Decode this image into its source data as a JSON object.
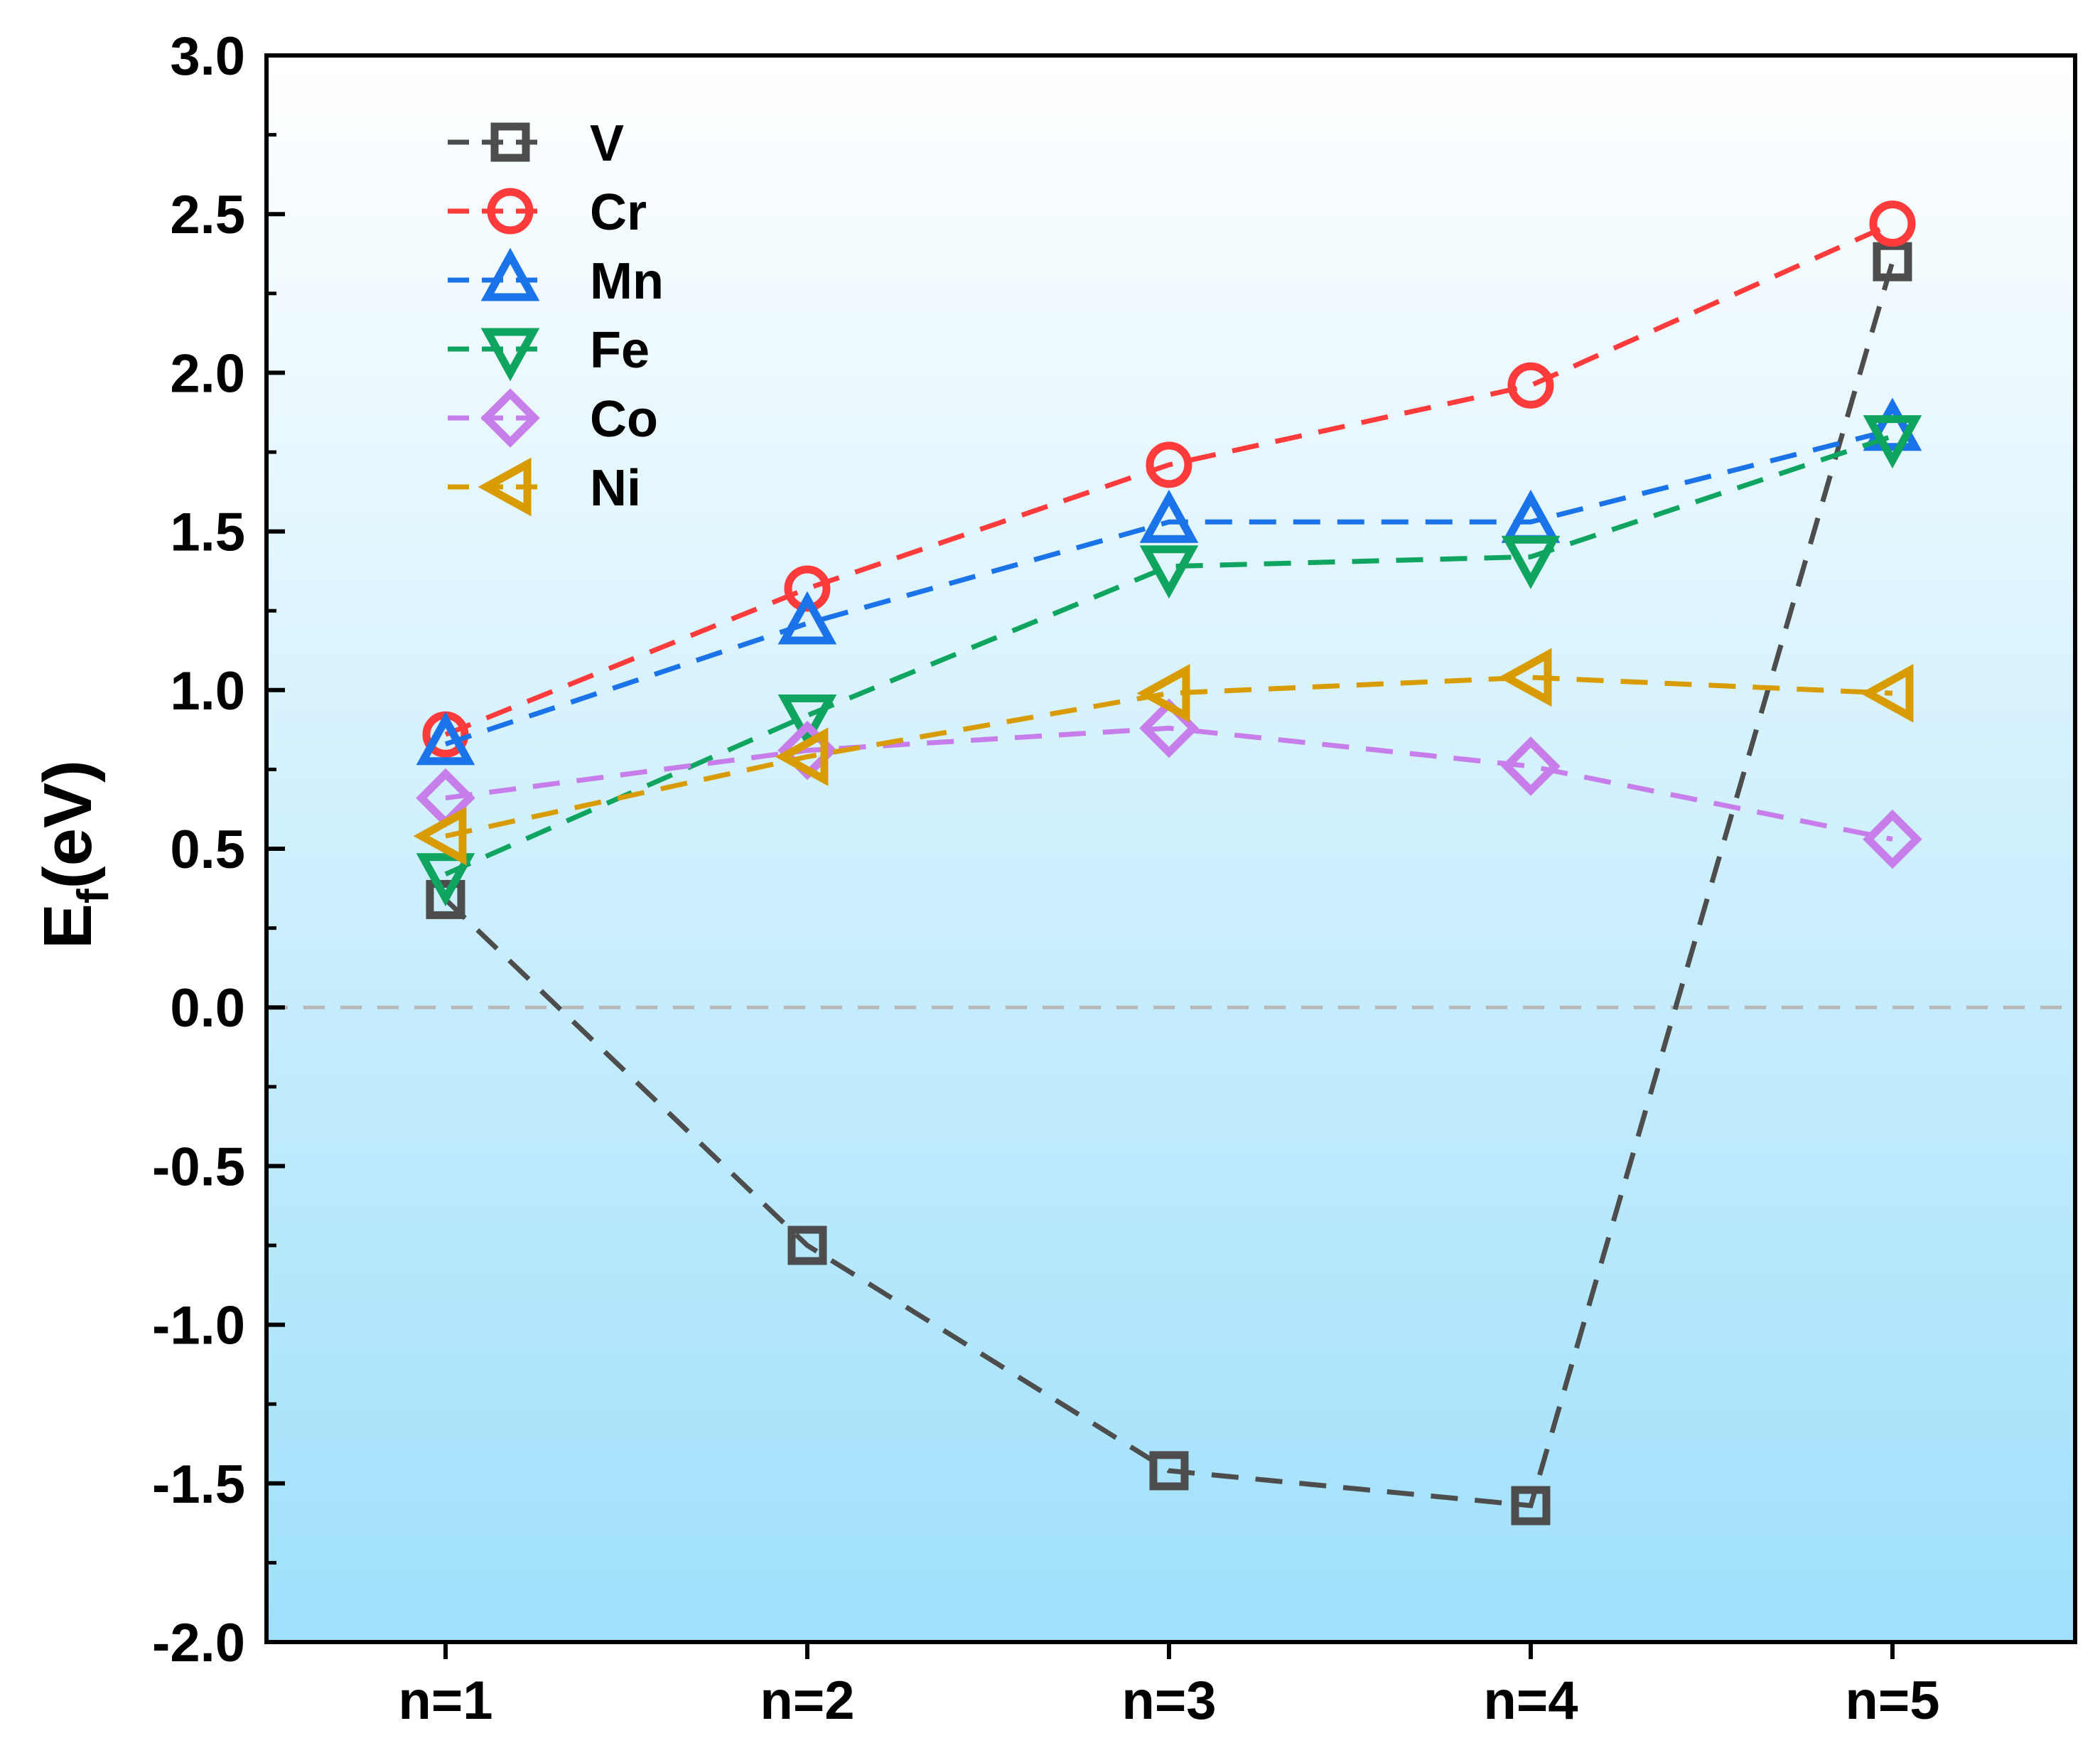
{
  "chart_data": {
    "type": "line",
    "title": "",
    "xlabel": "",
    "ylabel": {
      "main": "E",
      "subscript": "f",
      "suffix": "(eV)"
    },
    "categories": [
      "n=1",
      "n=2",
      "n=3",
      "n=4",
      "n=5"
    ],
    "ylim": [
      -2.0,
      3.0
    ],
    "yticks": [
      "-2.0",
      "-1.5",
      "-1.0",
      "-0.5",
      "0.0",
      "0.5",
      "1.0",
      "1.5",
      "2.0",
      "2.5",
      "3.0"
    ],
    "reference_line": {
      "y": 0.0,
      "style": "dashed",
      "color": "#b8b8b8"
    },
    "background": {
      "top": "#ffffff",
      "bottom": "#9fe0fb"
    },
    "grid": false,
    "legend_position": "top-left",
    "series": [
      {
        "name": "V",
        "marker": "square",
        "color": "#4d4d4d",
        "values": [
          0.34,
          -0.75,
          -1.46,
          -1.57,
          2.35
        ]
      },
      {
        "name": "Cr",
        "marker": "circle",
        "color": "#ff3b3b",
        "values": [
          0.86,
          1.32,
          1.71,
          1.96,
          2.47
        ]
      },
      {
        "name": "Mn",
        "marker": "triangle-up",
        "color": "#1a73e8",
        "values": [
          0.83,
          1.21,
          1.53,
          1.53,
          1.82
        ]
      },
      {
        "name": "Fe",
        "marker": "triangle-down",
        "color": "#0fa560",
        "values": [
          0.42,
          0.92,
          1.39,
          1.42,
          1.8
        ]
      },
      {
        "name": "Co",
        "marker": "diamond",
        "color": "#c77dea",
        "values": [
          0.66,
          0.81,
          0.88,
          0.76,
          0.53
        ]
      },
      {
        "name": "Ni",
        "marker": "triangle-left",
        "color": "#d89b00",
        "values": [
          0.54,
          0.79,
          0.99,
          1.04,
          0.99
        ]
      }
    ]
  }
}
